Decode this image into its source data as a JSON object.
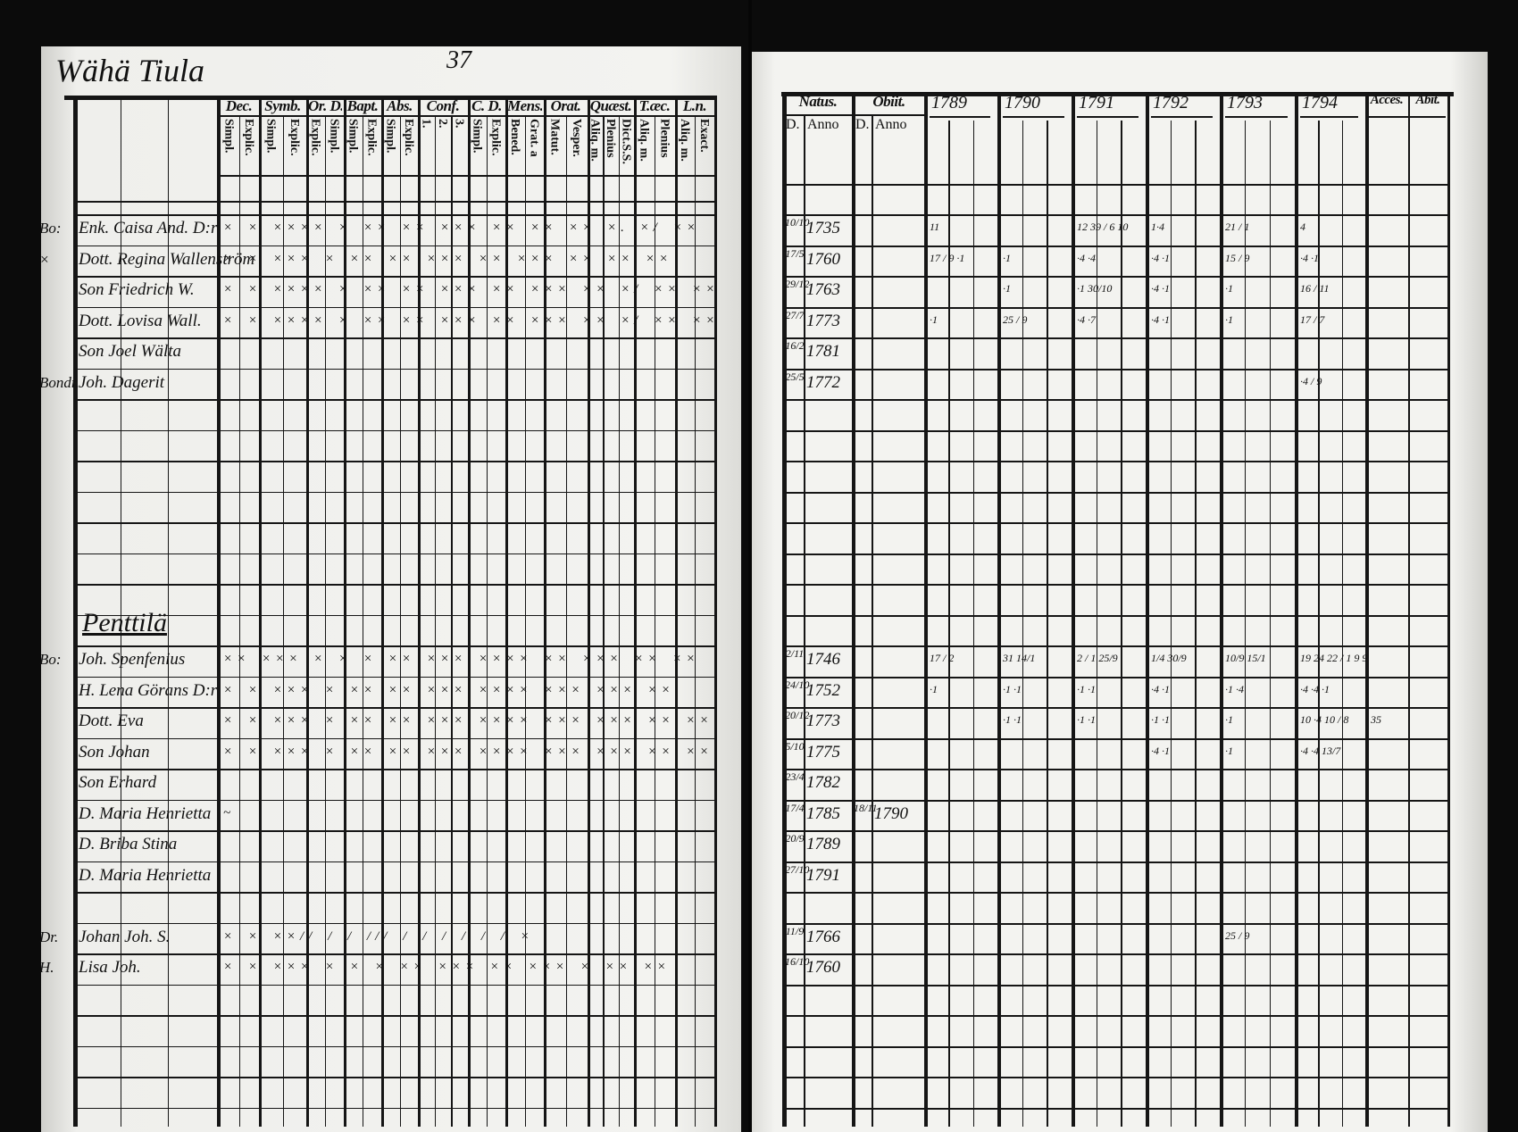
{
  "left_page": {
    "village_title": "Wähä Tiula",
    "page_number": "37",
    "header_groups": [
      {
        "label": "Dec.",
        "sub": [
          "Simpl.",
          "Explic."
        ]
      },
      {
        "label": "Symb.",
        "sub": [
          "Simpl.",
          "Explic."
        ]
      },
      {
        "label": "Or. D.",
        "sub": [
          "Explic.",
          "Simpl."
        ]
      },
      {
        "label": "Bapt.",
        "sub": [
          "Simpl.",
          "Explic."
        ]
      },
      {
        "label": "Abs.",
        "sub": [
          "Simpl.",
          "Explic."
        ]
      },
      {
        "label": "Conf.",
        "sub": [
          "1.",
          "2.",
          "3."
        ]
      },
      {
        "label": "C. D.",
        "sub": [
          "Simpl.",
          "Explic."
        ]
      },
      {
        "label": "Mens.",
        "sub": [
          "Bened.",
          "Grat. a"
        ]
      },
      {
        "label": "Orat.",
        "sub": [
          "Matut.",
          "Vesper."
        ]
      },
      {
        "label": "Quæst.",
        "sub": [
          "Aliq. m.",
          "Plenius",
          "Dict.S.S."
        ]
      },
      {
        "label": "T.æc.",
        "sub": [
          "Aliq. m.",
          "Plenius"
        ]
      },
      {
        "label": "L.n.",
        "sub": [
          "Aliq. m.",
          "Exact."
        ]
      }
    ],
    "rows": [
      {
        "prefix": "Bo:",
        "name": "Enk. Caisa And. D:r",
        "marks": "× × ×××× × ×× ×× ××× ×× ×× ×× ×. ×/ ××"
      },
      {
        "prefix": "×",
        "name": "Dott. Regina Wallenström",
        "marks": "× × ××× × ×× ×× ××× ×× ××× ×× ×× ××"
      },
      {
        "prefix": "",
        "name": "Son Friedrich W.",
        "marks": "× × ×××× × ×× ×× ××× ×× ××× ×× ×/ ×× ××"
      },
      {
        "prefix": "",
        "name": "Dott. Lovisa Wall.",
        "marks": "× × ×××× × ×× ×× ××× ×× ××× ×× ×/ ×× ××"
      },
      {
        "prefix": "",
        "name": "Son Joel Wälta",
        "marks": ""
      },
      {
        "prefix": "Bondr.",
        "name": "Joh. Dagerit",
        "marks": ""
      },
      {
        "prefix": "",
        "name": "",
        "marks": ""
      },
      {
        "prefix": "",
        "name": "",
        "marks": ""
      },
      {
        "prefix": "",
        "name": "",
        "marks": ""
      },
      {
        "prefix": "",
        "name": "",
        "marks": ""
      },
      {
        "prefix": "",
        "name": "",
        "marks": ""
      },
      {
        "prefix": "",
        "name": "",
        "marks": ""
      },
      {
        "prefix": "",
        "name": "",
        "marks": ""
      },
      {
        "prefix": "",
        "name": "Penttilä",
        "marks": "",
        "heading": true
      },
      {
        "prefix": "Bo:",
        "name": "Joh. Spenfenius",
        "marks": "×× ××× × × × ×× ××× ×××× ×× ××× ×× ××"
      },
      {
        "prefix": "",
        "name": "H. Lena Görans D:r",
        "marks": "× × ××× × ×× ×× ××× ×××× ××× ××× ××"
      },
      {
        "prefix": "",
        "name": "Dott. Eva",
        "marks": "× × ××× × ×× ×× ××× ×××× ××× ××× ×× ××"
      },
      {
        "prefix": "",
        "name": "Son Johan",
        "marks": "× × ××× × ×× ×× ××× ×××× ××× ××× ×× ××"
      },
      {
        "prefix": "",
        "name": "Son Erhard",
        "marks": ""
      },
      {
        "prefix": "",
        "name": "D. Maria Henrietta",
        "marks": "~"
      },
      {
        "prefix": "",
        "name": "D. Briba Stina",
        "marks": ""
      },
      {
        "prefix": "",
        "name": "D. Maria Henrietta",
        "marks": ""
      },
      {
        "prefix": "",
        "name": "",
        "marks": ""
      },
      {
        "prefix": "Dr.",
        "name": "Johan Joh. S.",
        "marks": "× × ××// / / /// / / / / / /  ×"
      },
      {
        "prefix": "H.",
        "name": "Lisa Joh.",
        "marks": "× × ××× × × × ×× ××× ×× ××× ×  ×× ××"
      },
      {
        "prefix": "",
        "name": "",
        "marks": ""
      },
      {
        "prefix": "",
        "name": "",
        "marks": ""
      },
      {
        "prefix": "",
        "name": "",
        "marks": ""
      },
      {
        "prefix": "",
        "name": "",
        "marks": ""
      }
    ]
  },
  "right_page": {
    "header": {
      "natus": "Natus.",
      "obiit": "Obiit.",
      "natus_sub": [
        "D.",
        "Anno"
      ],
      "obiit_sub": [
        "D.",
        "Anno"
      ],
      "years": [
        "1789",
        "1790",
        "1791",
        "1792",
        "1793",
        "1794"
      ],
      "acces": "Acces.",
      "abit": "Abit."
    },
    "rows": [
      {
        "natus_day": "10/10",
        "natus_year": "1735",
        "obiit_day": "",
        "obiit_year": "",
        "notes": [
          "11",
          "",
          "12 39 / 6 10",
          "1·4",
          "21 / 1",
          "4"
        ]
      },
      {
        "natus_day": "17/5",
        "natus_year": "1760",
        "obiit_day": "",
        "obiit_year": "",
        "notes": [
          "17 / 9 ·1",
          "·1",
          "·4 ·4",
          "·4 ·1",
          "15 / 9",
          "·4 ·1"
        ]
      },
      {
        "natus_day": "29/12",
        "natus_year": "1763",
        "obiit_day": "",
        "obiit_year": "",
        "notes": [
          "",
          "·1",
          "·1 30/10",
          "·4 ·1",
          "·1",
          "16 / 11"
        ]
      },
      {
        "natus_day": "27/7",
        "natus_year": "1773",
        "obiit_day": "",
        "obiit_year": "",
        "notes": [
          "·1",
          "25 / 9",
          "·4 ·7",
          "·4 ·1",
          "·1",
          "17 / 7"
        ]
      },
      {
        "natus_day": "16/2",
        "natus_year": "1781",
        "obiit_day": "",
        "obiit_year": "",
        "notes": []
      },
      {
        "natus_day": "25/5",
        "natus_year": "1772",
        "obiit_day": "",
        "obiit_year": "",
        "notes": [
          "",
          "",
          "",
          "",
          "",
          "·4 / 9"
        ]
      },
      {},
      {},
      {},
      {},
      {},
      {},
      {},
      {},
      {
        "natus_day": "2/11",
        "natus_year": "1746",
        "obiit_day": "",
        "obiit_year": "",
        "notes": [
          "17 / 2",
          "31 14/1",
          "2 / 1  25/9",
          "1/4 30/9",
          "10/9  15/1",
          "19 24 22 / 1 9 9"
        ]
      },
      {
        "natus_day": "24/10",
        "natus_year": "1752",
        "obiit_day": "",
        "obiit_year": "",
        "notes": [
          "·1",
          "·1 ·1",
          "·1  ·1",
          "·4 ·1",
          "·1  ·4",
          "·4 ·4 ·1"
        ]
      },
      {
        "natus_day": "20/12",
        "natus_year": "1773",
        "obiit_day": "",
        "obiit_year": "",
        "notes": [
          "",
          "·1 ·1",
          "·1  ·1",
          "·1 ·1",
          "·1",
          "10 ·4 10 / 8",
          "35"
        ]
      },
      {
        "natus_day": "5/10",
        "natus_year": "1775",
        "obiit_day": "",
        "obiit_year": "",
        "notes": [
          "",
          "",
          "",
          "·4 ·1",
          "·1",
          "·4 ·4 13/7"
        ]
      },
      {
        "natus_day": "23/4",
        "natus_year": "1782",
        "obiit_day": "",
        "obiit_year": "",
        "notes": []
      },
      {
        "natus_day": "17/4",
        "natus_year": "1785",
        "obiit_day": "18/11",
        "obiit_year": "1790",
        "notes": []
      },
      {
        "natus_day": "20/9",
        "natus_year": "1789",
        "obiit_day": "",
        "obiit_year": "",
        "notes": []
      },
      {
        "natus_day": "27/10",
        "natus_year": "1791",
        "obiit_day": "",
        "obiit_year": "",
        "notes": []
      },
      {},
      {
        "natus_day": "11/9",
        "natus_year": "1766",
        "obiit_day": "",
        "obiit_year": "",
        "notes": [
          "",
          "",
          "",
          "",
          "25 / 9"
        ]
      },
      {
        "natus_day": "16/10",
        "natus_year": "1760",
        "obiit_day": "",
        "obiit_year": "",
        "notes": []
      },
      {},
      {},
      {},
      {}
    ]
  },
  "colors": {
    "paper": "#f1f1ee",
    "ink": "#111111",
    "scan_border": "#0b0b0b"
  }
}
